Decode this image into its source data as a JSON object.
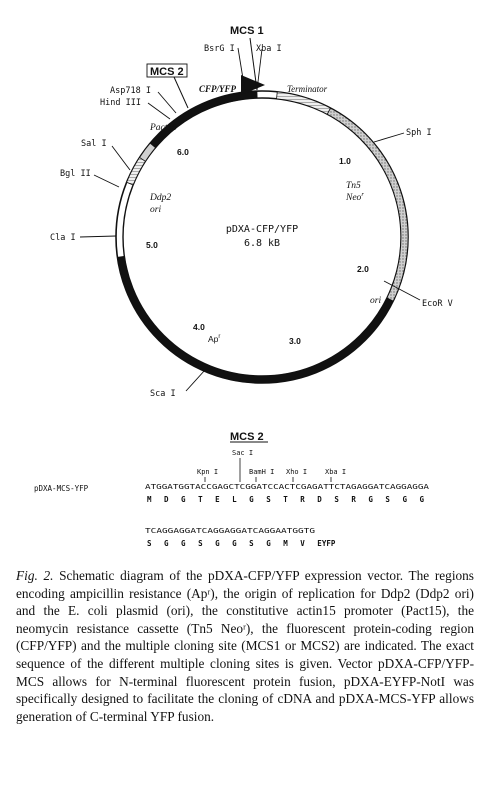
{
  "plasmid": {
    "name": "pDXA-CFP/YFP",
    "size": "6.8 kB"
  },
  "features": {
    "cfp_yfp": "CFP/YFP",
    "terminator": "Terminator",
    "pact15": "Pact15",
    "tn5": "Tn5",
    "neo": "Neo",
    "neo_sup": "r",
    "ddp2": "Ddp2",
    "ddp2_ori": "ori",
    "ori": "ori",
    "apr": "Ap",
    "apr_sup": "r"
  },
  "mcs": {
    "mcs1": "MCS 1",
    "mcs2": "MCS 2"
  },
  "sites": {
    "bsrg1": "BsrG I",
    "xba1": "Xba I",
    "asp718": "Asp718 I",
    "hind3": "Hind III",
    "sal1": "Sal I",
    "bgl2": "Bgl II",
    "cla1": "Cla I",
    "sph1": "Sph I",
    "ecorv": "EcoR V",
    "sca1": "Sca I"
  },
  "coordinates": {
    "c1": "1.0",
    "c2": "2.0",
    "c3": "3.0",
    "c4": "4.0",
    "c5": "5.0",
    "c6": "6.0"
  },
  "mcs_sequence": {
    "title": "MCS 2",
    "vector_label": "pDXA-MCS-YFP",
    "sites": {
      "sac": "Sac I",
      "kpn": "Kpn I",
      "bamh": "BamH I",
      "xho": "Xho I",
      "xba": "Xba I"
    },
    "dna1": "ATGGATGGTACCGAGCTCGGATCCACTCGAGATTCTAGAGGATCAGGAGGA",
    "aa1": "M D G T E L G S T R D S R G S G G",
    "dna2": "TCAGGAGGATCAGGAGGATCAGGAATGGTG",
    "aa2": "S G G S G G S G M V  EYFP"
  },
  "caption": {
    "fig": "Fig. 2.",
    "text": " Schematic diagram of the pDXA-CFP/YFP expression vector. The regions encoding ampicillin resistance (Apʳ), the origin of replication for Ddp2 (Ddp2 ori) and the E. coli plasmid (ori), the constitutive actin15 promoter (Pact15), the neomycin resistance cassette (Tn5 Neoʳ), the fluorescent protein-coding region (CFP/YFP) and the multiple cloning site (MCS1 or MCS2) are indicated. The exact sequence of the different multiple cloning sites is given. Vector pDXA-CFP/YFP-MCS allows for N-terminal fluorescent protein fusion, pDXA-EYFP-NotI was specifically designed to facilitate the cloning of cDNA and pDXA-MCS-YFP allows generation of C-terminal YFP fusion."
  }
}
